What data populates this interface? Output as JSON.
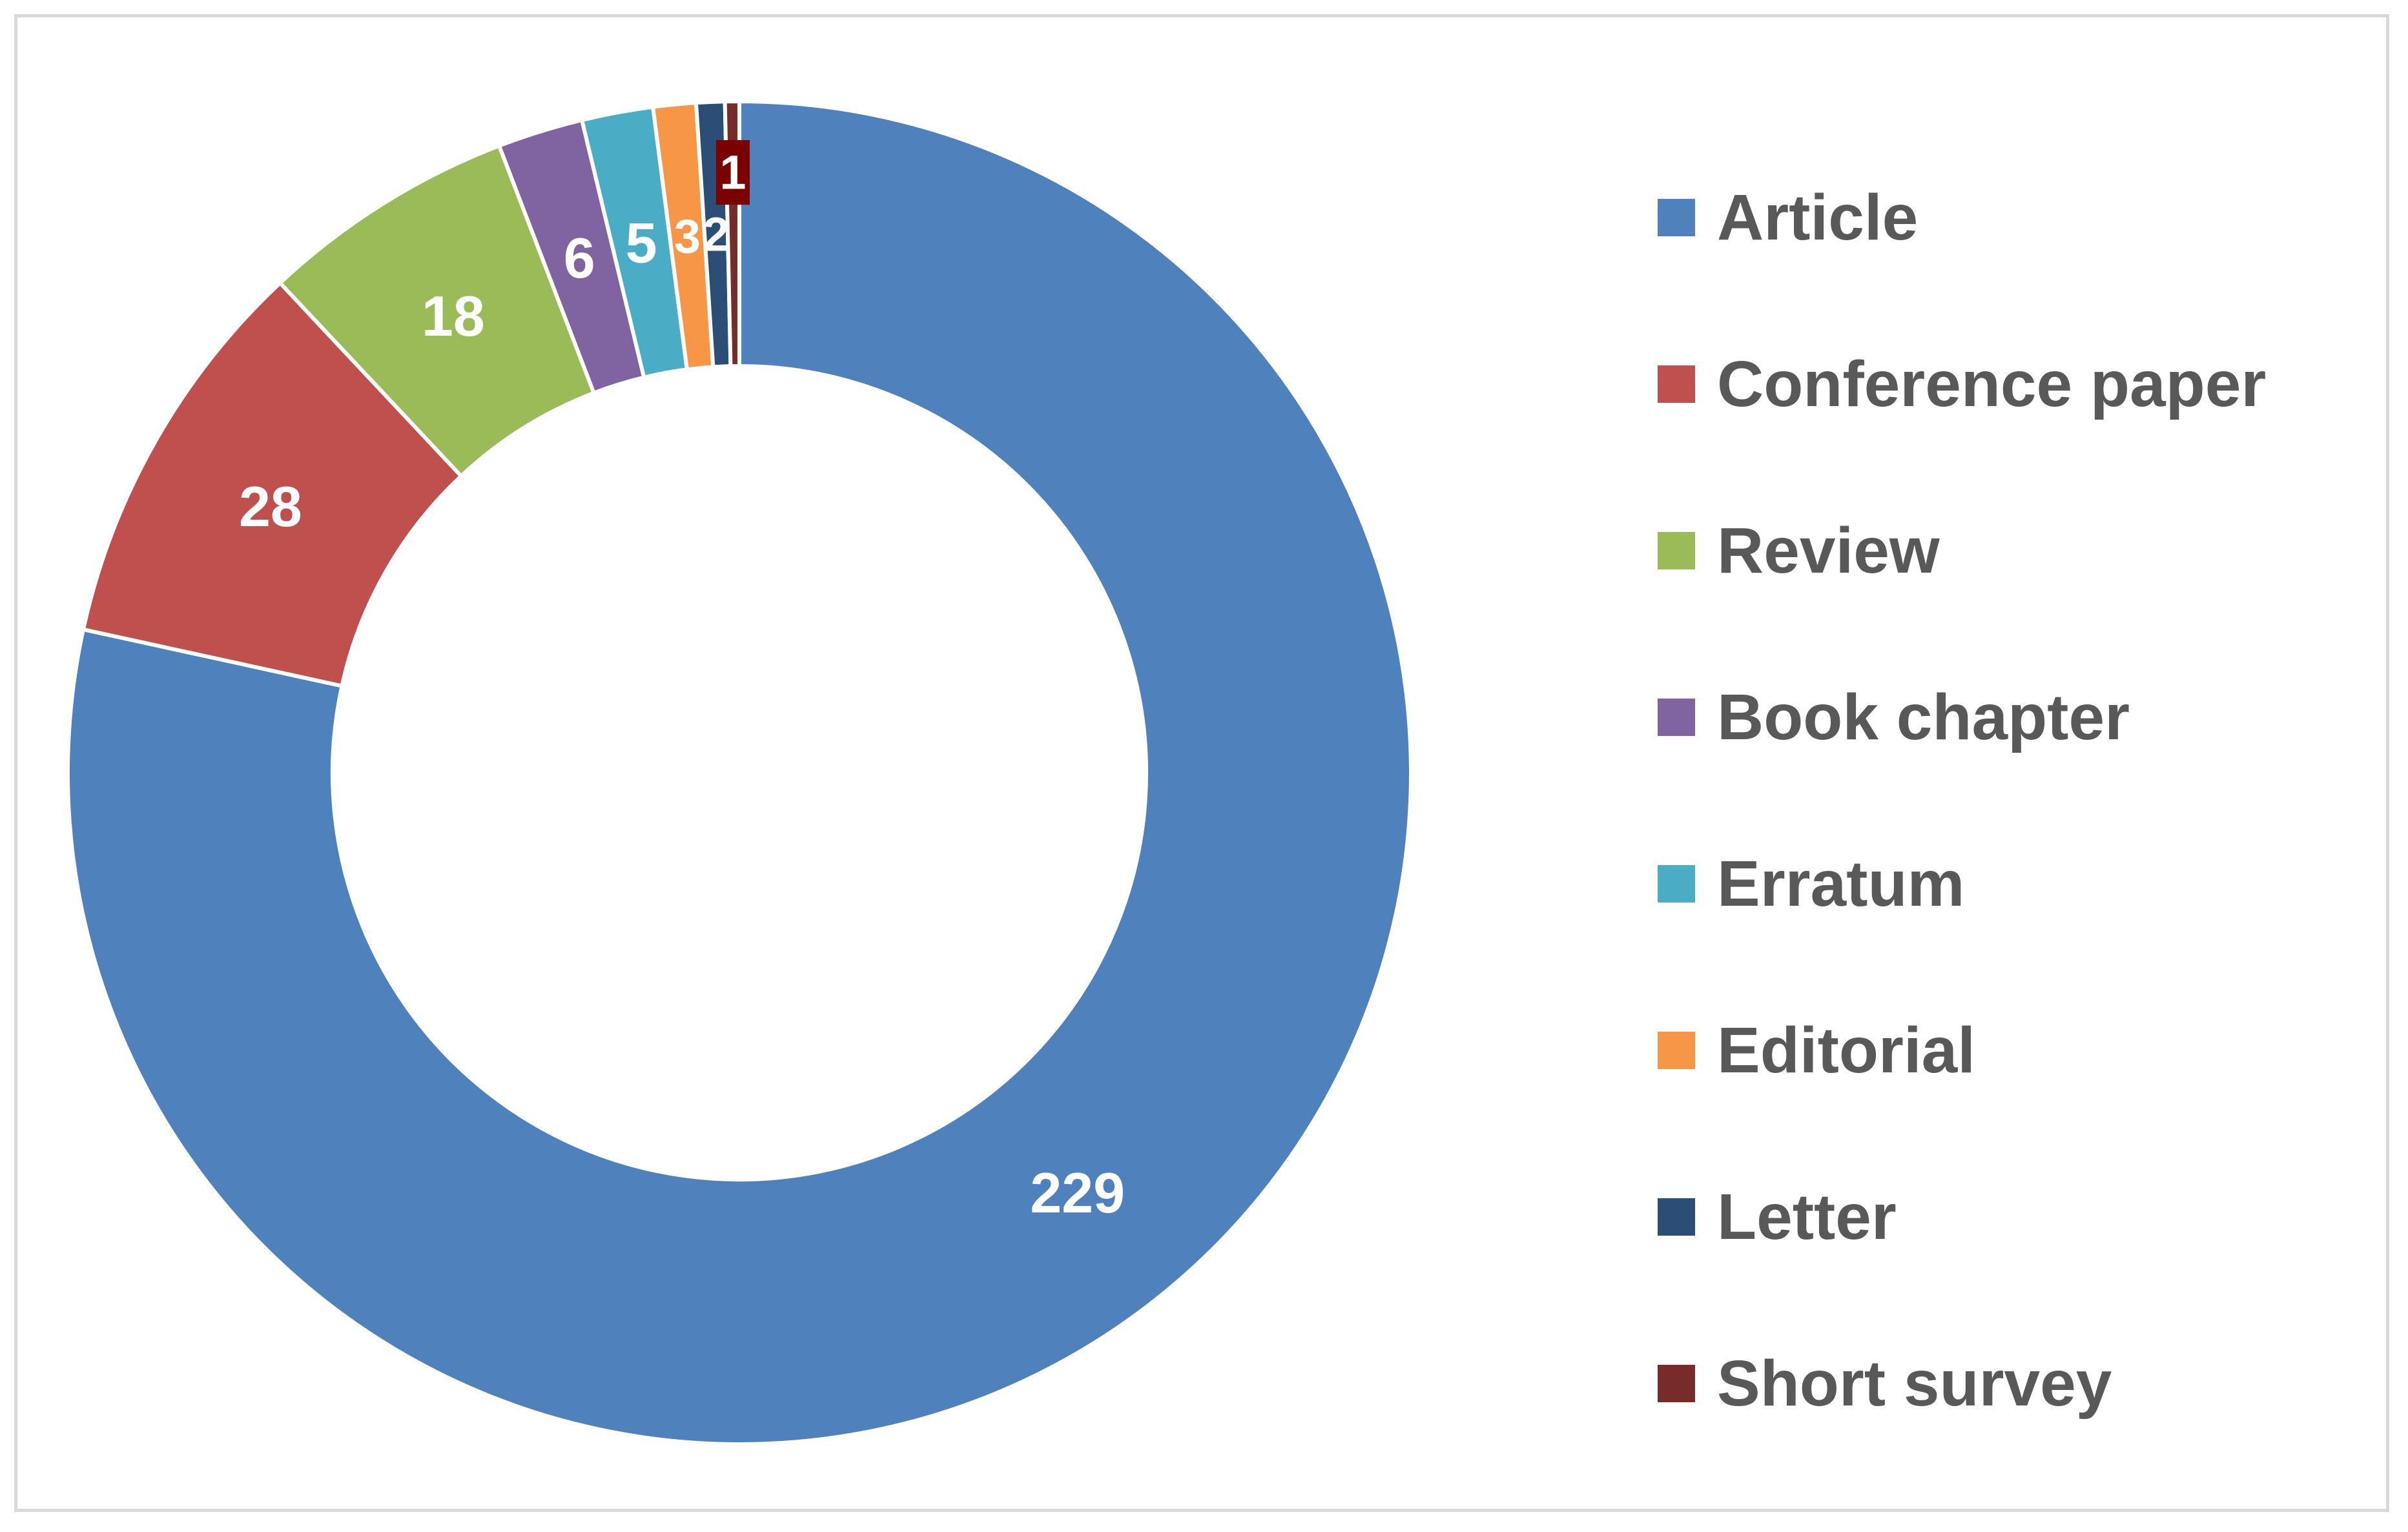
{
  "chart_data": {
    "type": "pie",
    "variant": "donut",
    "title": "",
    "categories": [
      "Article",
      "Conference paper",
      "Review",
      "Book chapter",
      "Erratum",
      "Editorial",
      "Letter",
      "Short survey"
    ],
    "values": [
      229,
      28,
      18,
      6,
      5,
      3,
      2,
      1
    ],
    "colors": [
      "#4f81bd",
      "#c0504d",
      "#9bbb59",
      "#8064a2",
      "#4bacc6",
      "#f79646",
      "#2c4d75",
      "#772c2a"
    ],
    "data_labels": [
      "229",
      "28",
      "18",
      "6",
      "5",
      "3",
      "2",
      "1"
    ],
    "legend_position": "right",
    "start_angle_deg": 0,
    "direction": "clockwise"
  },
  "legend": {
    "items": [
      {
        "label": "Article",
        "color": "#4f81bd"
      },
      {
        "label": "Conference paper",
        "color": "#c0504d"
      },
      {
        "label": "Review",
        "color": "#9bbb59"
      },
      {
        "label": "Book chapter",
        "color": "#8064a2"
      },
      {
        "label": "Erratum",
        "color": "#4bacc6"
      },
      {
        "label": "Editorial",
        "color": "#f79646"
      },
      {
        "label": "Letter",
        "color": "#2c4d75"
      },
      {
        "label": "Short survey",
        "color": "#772c2a"
      }
    ]
  }
}
